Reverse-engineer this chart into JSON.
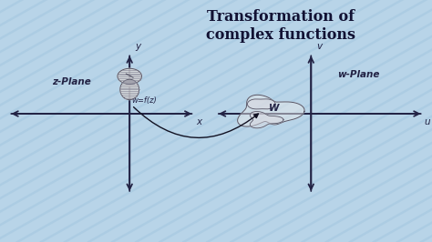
{
  "title_line1": "Transformation of",
  "title_line2": "complex functions",
  "title_color": "#111133",
  "bg_color": "#b8d4e8",
  "bg_stripe_color": "#a5c8e0",
  "axis_color": "#222244",
  "label_color": "#222244",
  "z_plane_label": "z-Plane",
  "w_plane_label": "w-Plane",
  "mapping_label": "w=f(z)",
  "x_label": "x",
  "y_label": "y",
  "u_label": "u",
  "v_label": "v",
  "w_label": "W",
  "arrow_color": "#111122",
  "shape_edge": "#555566",
  "shape_fill": "#d8d8d8"
}
